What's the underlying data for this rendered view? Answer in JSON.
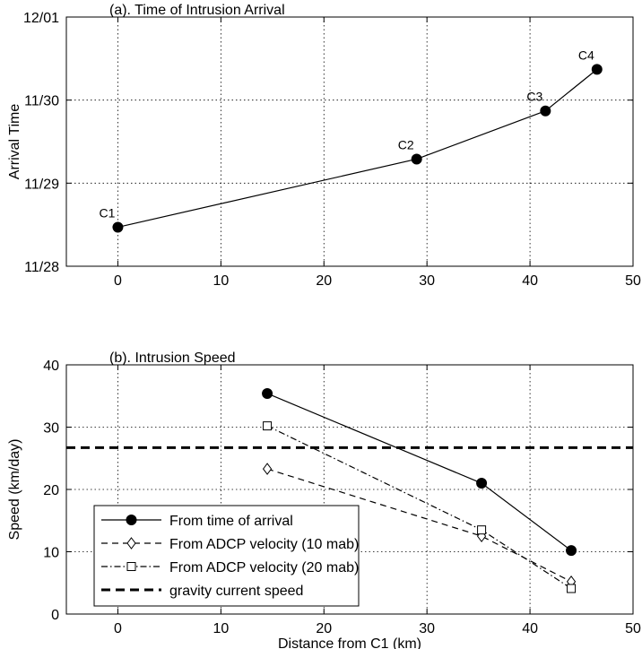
{
  "chart_data": [
    {
      "id": "a",
      "type": "line",
      "title": "(a). Time of Intrusion Arrival",
      "xlabel": "",
      "ylabel": "Arrival Time",
      "xlim": [
        -5,
        50
      ],
      "ylim": [
        0,
        3
      ],
      "xticks": [
        0,
        10,
        20,
        30,
        40,
        50
      ],
      "yticks": [
        0,
        1,
        2,
        3
      ],
      "ytick_labels": [
        "11/28",
        "11/29",
        "11/30",
        "12/01"
      ],
      "grid": true,
      "series": [
        {
          "x": [
            0,
            29,
            41.5,
            46.5
          ],
          "y": [
            0.47,
            1.29,
            1.87,
            2.37
          ],
          "labels": [
            "C1",
            "C2",
            "C3",
            "C4"
          ],
          "marker": "filled-circle",
          "line": "solid",
          "color": "#000000"
        }
      ]
    },
    {
      "id": "b",
      "type": "line",
      "title": "(b). Intrusion Speed",
      "xlabel": "Distance from C1 (km)",
      "ylabel": "Speed (km/day)",
      "xlim": [
        -5,
        50
      ],
      "ylim": [
        0,
        40
      ],
      "xticks": [
        0,
        10,
        20,
        30,
        40,
        50
      ],
      "yticks": [
        0,
        10,
        20,
        30,
        40
      ],
      "grid": true,
      "legend_position": "bottom-left",
      "series": [
        {
          "name": "From time of arrival",
          "x": [
            14.5,
            35.3,
            44
          ],
          "y": [
            35.4,
            21,
            10.2
          ],
          "marker": "filled-circle",
          "line": "solid",
          "color": "#000000"
        },
        {
          "name": "From ADCP velocity (10 mab)",
          "x": [
            14.5,
            35.3,
            44
          ],
          "y": [
            23.3,
            12.5,
            5.2
          ],
          "marker": "diamond",
          "line": "dashed",
          "color": "#000000"
        },
        {
          "name": "From ADCP velocity (20 mab)",
          "x": [
            14.5,
            35.3,
            44
          ],
          "y": [
            30.2,
            13.5,
            4.1
          ],
          "marker": "square",
          "line": "dashdot",
          "color": "#000000"
        },
        {
          "name": "gravity current speed",
          "y_constant": 26.7,
          "marker": "none",
          "line": "thick-dashed",
          "color": "#000000"
        }
      ]
    }
  ]
}
